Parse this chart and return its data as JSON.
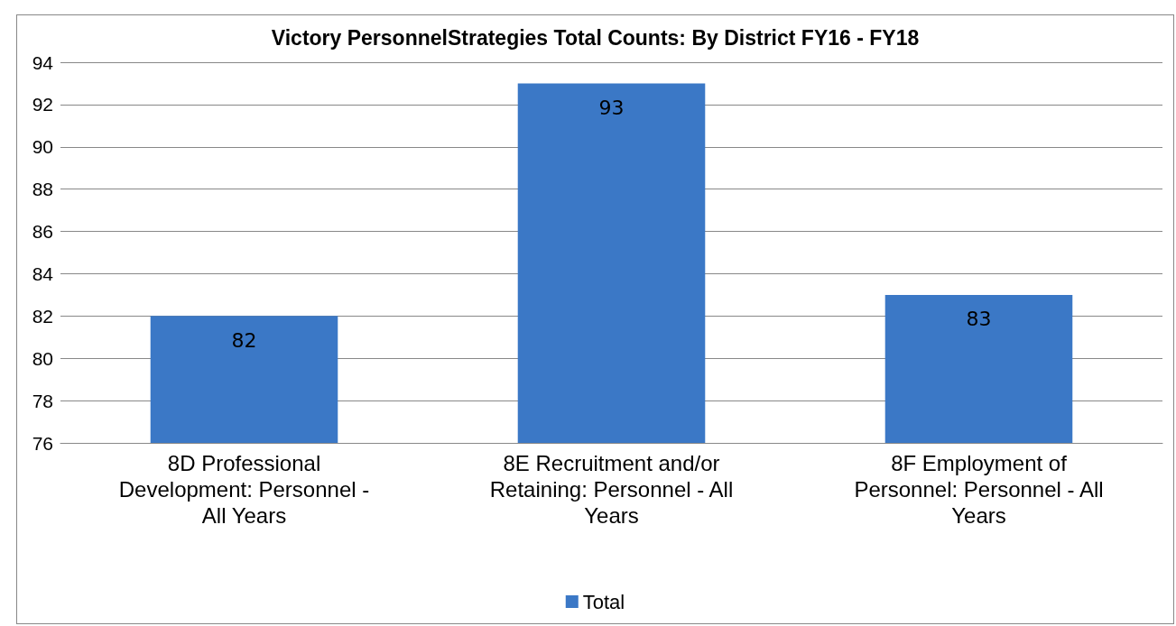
{
  "chart_data": {
    "type": "bar",
    "title": "Victory PersonnelStrategies Total Counts: By District FY16 - FY18",
    "categories": [
      "8D Professional Development: Personnel - All Years",
      "8E Recruitment and/or Retaining: Personnel - All Years",
      "8F Employment of Personnel: Personnel - All Years"
    ],
    "series": [
      {
        "name": "Total",
        "color": "#3b78c6",
        "values": [
          82,
          93,
          83
        ]
      }
    ],
    "ylim": [
      76,
      94
    ],
    "yticks": [
      76,
      78,
      80,
      82,
      84,
      86,
      88,
      90,
      92,
      94
    ],
    "grid": "y",
    "legend": "bottom",
    "data_labels": true
  }
}
